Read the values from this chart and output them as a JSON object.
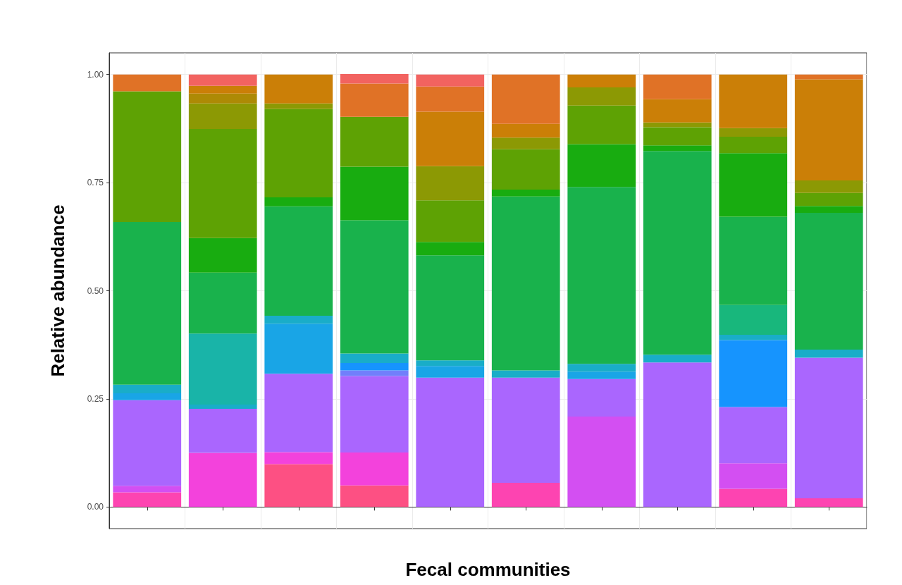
{
  "chart_data": {
    "type": "bar",
    "stacked": true,
    "xlabel": "Fecal communities",
    "ylabel": "Relative abundance",
    "categories": [
      null,
      null,
      null,
      null,
      null,
      null,
      null,
      null,
      null,
      null
    ],
    "ylim": [
      -0.05,
      1.05
    ],
    "yticks": [
      {
        "value": 0,
        "label": "0.00"
      },
      {
        "value": 0.25,
        "label": "0.25"
      },
      {
        "value": 0.5,
        "label": "0.50"
      },
      {
        "value": 0.75,
        "label": "0.75"
      },
      {
        "value": 1,
        "label": "1.00"
      }
    ],
    "grid": true,
    "series": [
      {
        "color": "#fd5083",
        "values": [
          null,
          null,
          0.099,
          0.05,
          null,
          null,
          null,
          null,
          null,
          null
        ]
      },
      {
        "color": "#fd44b1",
        "values": [
          0.034,
          null,
          null,
          null,
          null,
          0.056,
          null,
          null,
          0.042,
          0.02
        ]
      },
      {
        "color": "#f342dc",
        "values": [
          null,
          0.125,
          0.028,
          0.076,
          null,
          null,
          null,
          null,
          null,
          null
        ]
      },
      {
        "color": "#d34ff2",
        "values": [
          0.015,
          null,
          null,
          null,
          null,
          null,
          0.209,
          null,
          0.059,
          null
        ]
      },
      {
        "color": "#aa66fe",
        "values": [
          0.198,
          0.102,
          0.181,
          0.177,
          0.299,
          0.243,
          0.087,
          0.334,
          0.13,
          0.325
        ]
      },
      {
        "color": "#717ffb",
        "values": [
          null,
          null,
          null,
          0.013,
          null,
          null,
          null,
          null,
          null,
          null
        ]
      },
      {
        "color": "#1694fe",
        "values": [
          null,
          null,
          null,
          0.017,
          null,
          null,
          null,
          null,
          0.155,
          null
        ]
      },
      {
        "color": "#19a5e6",
        "values": [
          0.016,
          null,
          0.116,
          null,
          0.027,
          null,
          0.017,
          null,
          null,
          null
        ]
      },
      {
        "color": "#19adc8",
        "values": [
          0.02,
          0.01,
          0.018,
          0.022,
          0.013,
          0.017,
          0.018,
          0.018,
          0.012,
          0.019
        ]
      },
      {
        "color": "#19b4a8",
        "values": [
          null,
          0.164,
          null,
          null,
          null,
          null,
          null,
          null,
          null,
          null
        ]
      },
      {
        "color": "#18b77c",
        "values": [
          null,
          null,
          null,
          null,
          null,
          null,
          null,
          null,
          0.069,
          null
        ]
      },
      {
        "color": "#19b24c",
        "values": [
          0.376,
          0.141,
          0.253,
          0.308,
          0.243,
          0.402,
          0.409,
          0.471,
          0.204,
          0.316
        ]
      },
      {
        "color": "#18ac10",
        "values": [
          null,
          0.08,
          0.021,
          0.124,
          0.031,
          0.016,
          0.099,
          0.013,
          0.147,
          0.016
        ]
      },
      {
        "color": "#5ea204",
        "values": [
          0.302,
          0.252,
          0.204,
          0.115,
          0.096,
          0.093,
          0.089,
          0.042,
          0.038,
          0.03
        ]
      },
      {
        "color": "#8c9904",
        "values": [
          null,
          0.059,
          0.013,
          null,
          0.079,
          0.027,
          0.042,
          0.011,
          0.02,
          0.029
        ]
      },
      {
        "color": "#ad8a05",
        "values": [
          null,
          0.023,
          null,
          null,
          null,
          null,
          null,
          null,
          null,
          null
        ]
      },
      {
        "color": "#cb7f07",
        "values": [
          null,
          0.018,
          0.067,
          null,
          0.126,
          0.032,
          0.03,
          0.054,
          0.124,
          0.234
        ]
      },
      {
        "color": "#e07226",
        "values": [
          0.039,
          null,
          null,
          0.077,
          0.058,
          0.114,
          null,
          0.057,
          null,
          0.011
        ]
      },
      {
        "color": "#f26360",
        "values": [
          null,
          0.026,
          null,
          0.022,
          0.028,
          null,
          null,
          null,
          null,
          null
        ]
      }
    ]
  }
}
